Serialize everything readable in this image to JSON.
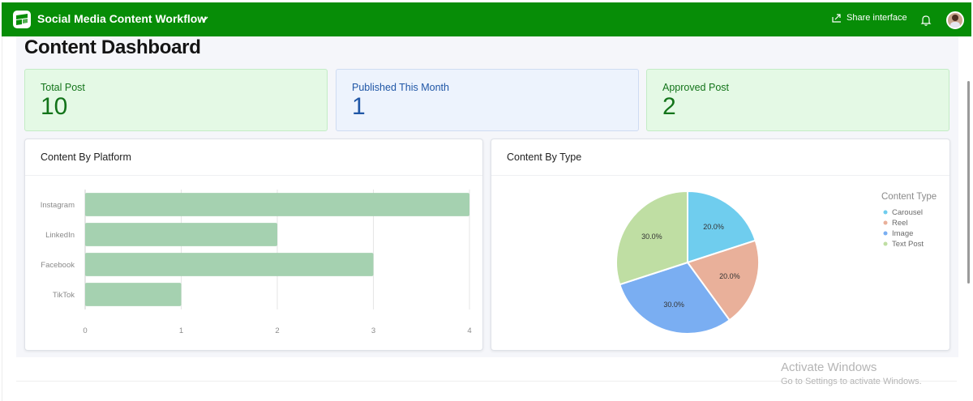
{
  "topbar": {
    "title": "Social Media Content Workflow",
    "share_label": "Share interface",
    "accent": "#078d07"
  },
  "page": {
    "title": "Content Dashboard"
  },
  "stats": [
    {
      "label": "Total Post",
      "value": "10"
    },
    {
      "label": "Published This Month",
      "value": "1"
    },
    {
      "label": "Approved Post",
      "value": "2"
    }
  ],
  "platform_card": {
    "title": "Content By Platform"
  },
  "type_card": {
    "title": "Content By Type"
  },
  "chart_data": [
    {
      "type": "bar",
      "orientation": "horizontal",
      "title": "Content By Platform",
      "categories": [
        "Instagram",
        "LinkedIn",
        "Facebook",
        "TikTok"
      ],
      "values": [
        4,
        2,
        3,
        1
      ],
      "xlim": [
        0,
        4
      ],
      "xticks": [
        "0",
        "1",
        "2",
        "3",
        "4"
      ],
      "color": "#a5d1b0",
      "grid": true
    },
    {
      "type": "pie",
      "title": "Content By Type",
      "legend_title": "Content Type",
      "legend_position": "top-right",
      "slices": [
        {
          "label": "Carousel",
          "value": 20.0,
          "pct_label": "20.0%",
          "color": "#6fcdee"
        },
        {
          "label": "Reel",
          "value": 20.0,
          "pct_label": "20.0%",
          "color": "#e9b09a"
        },
        {
          "label": "Image",
          "value": 30.0,
          "pct_label": "30.0%",
          "color": "#7aaef2"
        },
        {
          "label": "Text Post",
          "value": 30.0,
          "pct_label": "30.0%",
          "color": "#bfdea3"
        }
      ]
    }
  ],
  "watermark": {
    "line1": "Activate Windows",
    "line2": "Go to Settings to activate Windows."
  }
}
